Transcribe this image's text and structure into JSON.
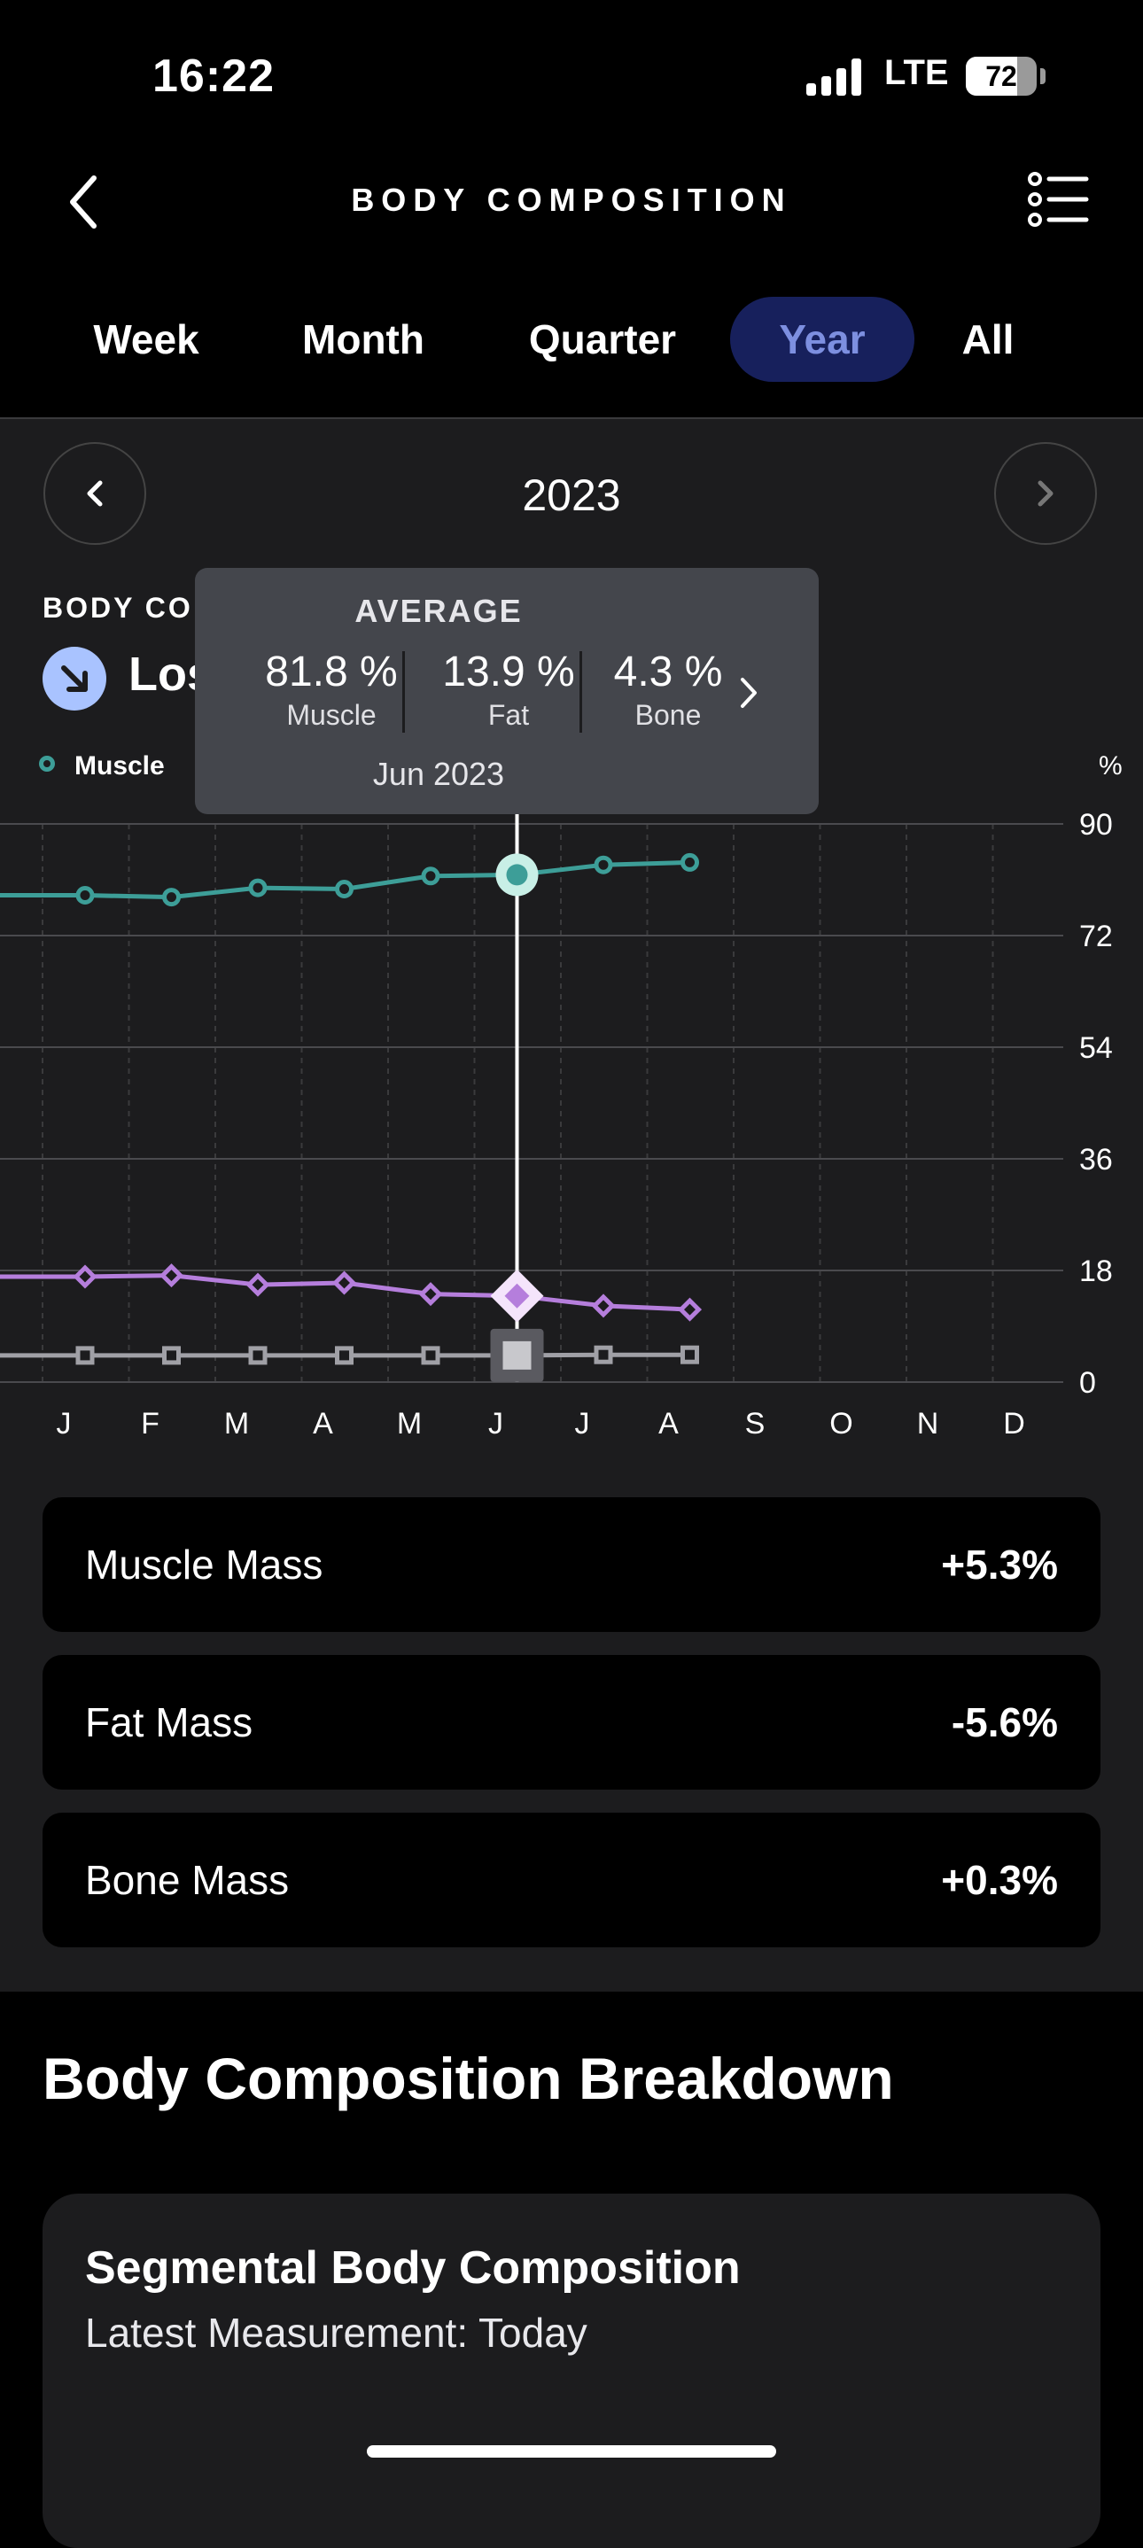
{
  "status_bar": {
    "time": "16:22",
    "network": "LTE",
    "battery": "72",
    "battery_level": 0.72
  },
  "nav": {
    "title": "BODY COMPOSITION"
  },
  "tabs": [
    {
      "label": "Week",
      "active": false
    },
    {
      "label": "Month",
      "active": false
    },
    {
      "label": "Quarter",
      "active": false
    },
    {
      "label": "Year",
      "active": true
    },
    {
      "label": "All",
      "active": false
    }
  ],
  "period": {
    "label": "2023"
  },
  "summary": {
    "label": "BODY CO",
    "trend_text": "Los"
  },
  "legend": {
    "muscle": "Muscle",
    "unit": "%"
  },
  "tooltip": {
    "title": "AVERAGE",
    "values": [
      {
        "value": "81.8 %",
        "label": "Muscle"
      },
      {
        "value": "13.9 %",
        "label": "Fat"
      },
      {
        "value": "4.3 %",
        "label": "Bone"
      }
    ],
    "date": "Jun 2023"
  },
  "chart_data": {
    "type": "line",
    "x": [
      "J",
      "F",
      "M",
      "A",
      "M",
      "J",
      "J",
      "A",
      "S",
      "O",
      "N",
      "D"
    ],
    "yticks": [
      90,
      72,
      54,
      36,
      18,
      0
    ],
    "ylim": [
      0,
      90
    ],
    "ylabel": "%",
    "selected_index": 5,
    "colors": {
      "muscle": "#3d9e98",
      "fat": "#b57edc",
      "bone": "#a0a0a6"
    },
    "series": [
      {
        "name": "Muscle",
        "marker": "circle",
        "values": [
          78.5,
          78.2,
          79.7,
          79.5,
          81.6,
          81.8,
          83.4,
          83.8,
          null,
          null,
          null,
          null
        ]
      },
      {
        "name": "Fat",
        "marker": "diamond",
        "values": [
          17.0,
          17.2,
          15.7,
          16.0,
          14.2,
          13.9,
          12.3,
          11.7,
          null,
          null,
          null,
          null
        ]
      },
      {
        "name": "Bone",
        "marker": "square",
        "values": [
          4.3,
          4.3,
          4.3,
          4.3,
          4.3,
          4.3,
          4.4,
          4.4,
          null,
          null,
          null,
          null
        ]
      }
    ]
  },
  "stats": [
    {
      "label": "Muscle Mass",
      "value": "+5.3%"
    },
    {
      "label": "Fat Mass",
      "value": "-5.6%"
    },
    {
      "label": "Bone Mass",
      "value": "+0.3%"
    }
  ],
  "breakdown": {
    "title": "Body Composition Breakdown",
    "card_title": "Segmental Body Composition",
    "card_subtitle": "Latest Measurement: Today"
  }
}
